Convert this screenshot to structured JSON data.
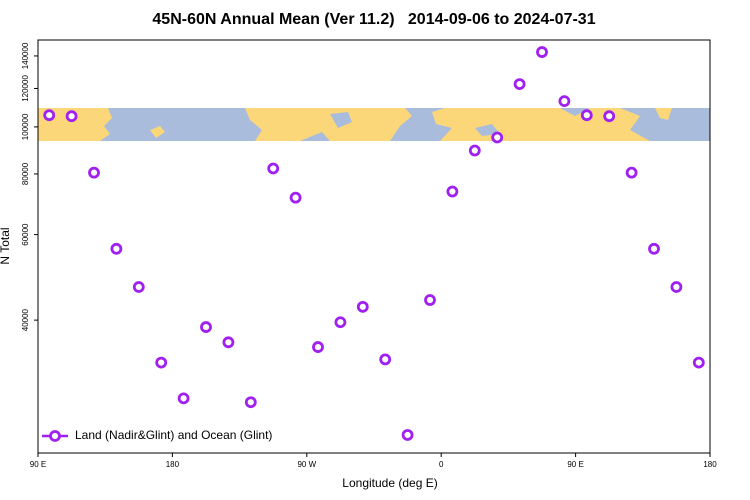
{
  "chart_data": {
    "type": "scatter",
    "title": "45N-60N Annual Mean (Ver 11.2)   2014-09-06 to 2024-07-31",
    "x_label": "Longitude (deg E)",
    "y_label": "N Total",
    "log_y": true,
    "xlim": [
      90,
      540
    ],
    "xticks": [
      {
        "value": 90,
        "label": "90 E"
      },
      {
        "value": 180,
        "label": "180"
      },
      {
        "value": 270,
        "label": "90 W"
      },
      {
        "value": 360,
        "label": "0"
      },
      {
        "value": 450,
        "label": "90 E"
      },
      {
        "value": 540,
        "label": "180"
      }
    ],
    "ylim": [
      21300,
      151000
    ],
    "yticks": [
      40000,
      60000,
      80000,
      100000,
      120000,
      140000
    ],
    "legend_position": "lower left",
    "series": [
      {
        "name": "Land (Nadir&Glint) and Ocean (Glint)",
        "color": "#a020f0",
        "x": [
          97.5,
          112.5,
          127.5,
          142.5,
          157.5,
          172.5,
          187.5,
          202.5,
          217.5,
          232.5,
          247.5,
          262.5,
          277.5,
          292.5,
          307.5,
          322.5,
          337.5,
          352.5,
          367.5,
          382.5,
          397.5,
          412.5,
          427.5,
          442.5,
          457.5,
          472.5,
          487.5,
          502.5,
          517.5,
          532.5
        ],
        "values": [
          105700,
          105200,
          80500,
          56100,
          46800,
          32700,
          27600,
          38700,
          36000,
          27100,
          82100,
          71500,
          35200,
          39600,
          42600,
          33200,
          23200,
          44000,
          73600,
          89400,
          95100,
          122500,
          142600,
          113000,
          105700,
          105200,
          80500,
          56100,
          46800,
          32700
        ]
      }
    ]
  }
}
